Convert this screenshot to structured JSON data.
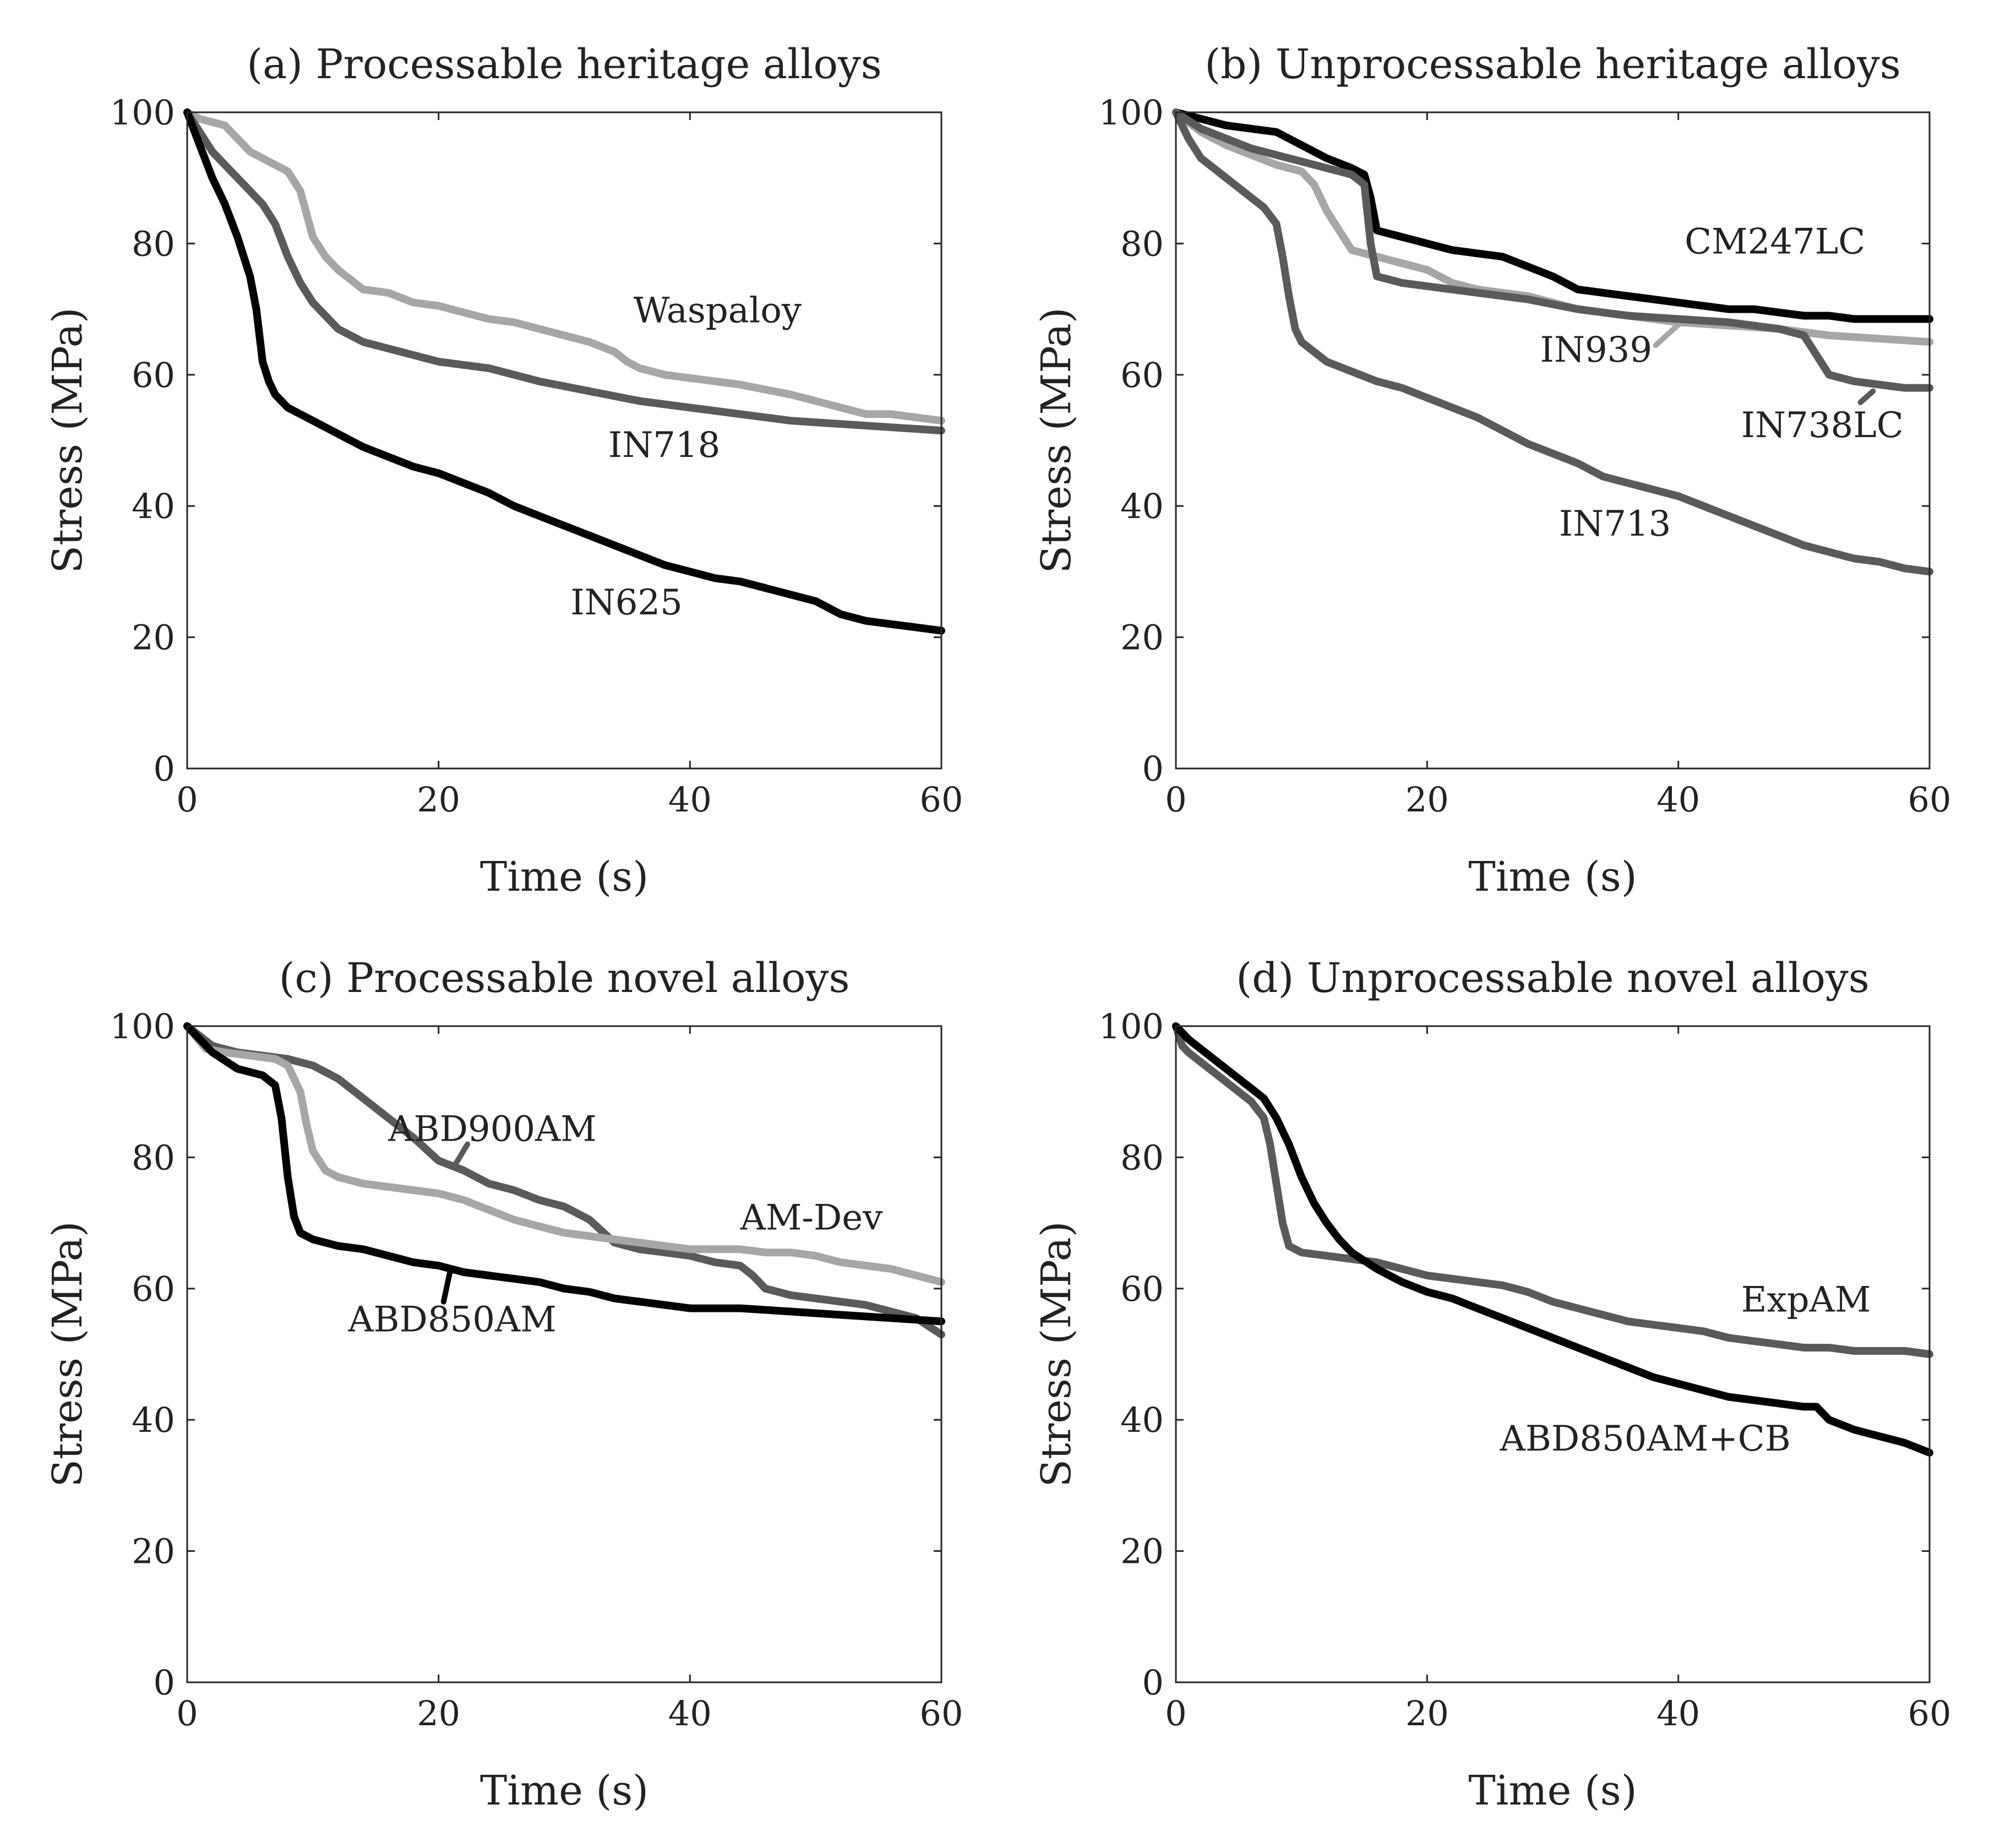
{
  "figure": {
    "colors": {
      "black": "#000000",
      "dark_gray": "#5a5a5a",
      "light_gray": "#a6a6a6",
      "axis": "#262626",
      "text": "#222222"
    }
  },
  "chart_data": [
    {
      "type": "line",
      "title": "(a) Processable heritage alloys",
      "xlabel": "Time (s)",
      "ylabel": "Stress (MPa)",
      "xlim": [
        0,
        60
      ],
      "ylim": [
        0,
        100
      ],
      "xticks": [
        0,
        20,
        40,
        60
      ],
      "yticks": [
        0,
        20,
        40,
        60,
        80,
        100
      ],
      "grid": false,
      "series": [
        {
          "name": "Waspaloy",
          "color": "light_gray",
          "label_anchor": [
            35.5,
            68
          ],
          "leader": null,
          "x": [
            0,
            1,
            2,
            3,
            4,
            5,
            6,
            7,
            8,
            9,
            10,
            11,
            12,
            14,
            16,
            18,
            20,
            22,
            24,
            26,
            28,
            30,
            32,
            34,
            35,
            36,
            38,
            40,
            44,
            48,
            50,
            52,
            54,
            56,
            58,
            60
          ],
          "y": [
            100,
            99,
            98.5,
            98,
            96,
            94,
            93,
            92,
            91,
            88,
            81,
            78,
            76,
            73,
            72.5,
            71,
            70.5,
            69.5,
            68.5,
            68,
            67,
            66,
            65,
            63.5,
            62,
            61,
            60,
            59.5,
            58.5,
            57,
            56,
            55,
            54,
            54,
            53.5,
            53
          ]
        },
        {
          "name": "IN718",
          "color": "dark_gray",
          "label_anchor": [
            33.5,
            47.5
          ],
          "leader": null,
          "x": [
            0,
            1,
            2,
            3,
            4,
            5,
            6,
            7,
            8,
            9,
            10,
            11,
            12,
            14,
            16,
            18,
            20,
            24,
            28,
            32,
            36,
            40,
            44,
            48,
            52,
            56,
            60
          ],
          "y": [
            100,
            97,
            94,
            92,
            90,
            88,
            86,
            83,
            78,
            74,
            71,
            69,
            67,
            65,
            64,
            63,
            62,
            61,
            59,
            57.5,
            56,
            55,
            54,
            53,
            52.5,
            52,
            51.5
          ]
        },
        {
          "name": "IN625",
          "color": "black",
          "label_anchor": [
            30.5,
            23.5
          ],
          "leader": null,
          "x": [
            0,
            1,
            2,
            3,
            4,
            5,
            5.5,
            6,
            6.5,
            7,
            8,
            10,
            12,
            14,
            16,
            18,
            20,
            22,
            24,
            26,
            28,
            30,
            32,
            34,
            36,
            38,
            40,
            42,
            44,
            46,
            48,
            50,
            52,
            54,
            56,
            58,
            60
          ],
          "y": [
            100,
            95,
            90,
            86,
            81,
            75,
            70,
            62,
            59,
            57,
            55,
            53,
            51,
            49,
            47.5,
            46,
            45,
            43.5,
            42,
            40,
            38.5,
            37,
            35.5,
            34,
            32.5,
            31,
            30,
            29,
            28.5,
            27.5,
            26.5,
            25.5,
            23.5,
            22.5,
            22,
            21.5,
            21
          ]
        }
      ]
    },
    {
      "type": "line",
      "title": "(b) Unprocessable heritage alloys",
      "xlabel": "Time (s)",
      "ylabel": "Stress (MPa)",
      "xlim": [
        0,
        60
      ],
      "ylim": [
        0,
        100
      ],
      "xticks": [
        0,
        20,
        40,
        60
      ],
      "yticks": [
        0,
        20,
        40,
        60,
        80,
        100
      ],
      "grid": false,
      "series": [
        {
          "name": "CM247LC",
          "color": "black",
          "label_anchor": [
            40.5,
            78.5
          ],
          "leader": null,
          "x": [
            0,
            2,
            4,
            6,
            8,
            10,
            12,
            14,
            15,
            15.5,
            16,
            18,
            20,
            22,
            24,
            26,
            28,
            30,
            32,
            34,
            36,
            38,
            40,
            42,
            44,
            46,
            48,
            50,
            52,
            54,
            56,
            58,
            60
          ],
          "y": [
            100,
            99,
            98,
            97.5,
            97,
            95,
            93,
            91.5,
            90.5,
            87,
            82,
            81,
            80,
            79,
            78.5,
            78,
            76.5,
            75,
            73,
            72.5,
            72,
            71.5,
            71,
            70.5,
            70,
            70,
            69.5,
            69,
            69,
            68.5,
            68.5,
            68.5,
            68.5
          ]
        },
        {
          "name": "IN939",
          "color": "light_gray",
          "label_anchor": [
            29,
            62
          ],
          "leader": [
            [
              38.2,
              64.5
            ],
            [
              40.5,
              68.5
            ]
          ],
          "x": [
            0,
            2,
            4,
            6,
            8,
            10,
            11,
            12,
            13,
            14,
            16,
            18,
            20,
            22,
            24,
            26,
            28,
            30,
            32,
            34,
            36,
            38,
            40,
            44,
            48,
            52,
            56,
            60
          ],
          "y": [
            100,
            97,
            95,
            93.5,
            92,
            91,
            89,
            85,
            82,
            79,
            78,
            77,
            76,
            74,
            73,
            72.5,
            72,
            71,
            70,
            69.5,
            69,
            68.5,
            68,
            67.5,
            67,
            66,
            65.5,
            65
          ]
        },
        {
          "name": "IN738LC",
          "color": "dark_gray",
          "label_anchor": [
            45,
            50.5
          ],
          "leader": [
            [
              54.5,
              55.8
            ],
            [
              55.5,
              57.5
            ]
          ],
          "x": [
            0,
            2,
            4,
            6,
            8,
            10,
            12,
            14,
            15,
            15.5,
            16,
            18,
            20,
            24,
            28,
            32,
            36,
            40,
            44,
            48,
            50,
            51,
            52,
            54,
            56,
            58,
            60
          ],
          "y": [
            100,
            97.5,
            96,
            94.5,
            93.5,
            92.5,
            91.5,
            90.5,
            89,
            80,
            75,
            74,
            73.5,
            72.5,
            71.5,
            70,
            69,
            68.5,
            68,
            67,
            66,
            63,
            60,
            59,
            58.5,
            58,
            58
          ]
        },
        {
          "name": "IN713",
          "color": "dark_gray",
          "label_anchor": [
            30.5,
            35.5
          ],
          "leader": null,
          "x": [
            0,
            1,
            2,
            3,
            4,
            5,
            6,
            7,
            8,
            8.5,
            9,
            9.5,
            10,
            11,
            12,
            14,
            16,
            18,
            20,
            22,
            24,
            26,
            28,
            30,
            32,
            34,
            36,
            38,
            40,
            42,
            44,
            46,
            48,
            50,
            52,
            54,
            56,
            58,
            60
          ],
          "y": [
            100,
            96,
            93,
            91.5,
            90,
            88.5,
            87,
            85.5,
            83,
            78,
            72,
            67,
            65,
            63.5,
            62,
            60.5,
            59,
            58,
            56.5,
            55,
            53.5,
            51.5,
            49.5,
            48,
            46.5,
            44.5,
            43.5,
            42.5,
            41.5,
            40,
            38.5,
            37,
            35.5,
            34,
            33,
            32,
            31.5,
            30.5,
            30
          ]
        }
      ]
    },
    {
      "type": "line",
      "title": "(c) Processable novel alloys",
      "xlabel": "Time (s)",
      "ylabel": "Stress (MPa)",
      "xlim": [
        0,
        60
      ],
      "ylim": [
        0,
        100
      ],
      "xticks": [
        0,
        20,
        40,
        60
      ],
      "yticks": [
        0,
        20,
        40,
        60,
        80,
        100
      ],
      "grid": false,
      "series": [
        {
          "name": "ABD900AM",
          "color": "dark_gray",
          "label_anchor": [
            16,
            82.5
          ],
          "leader": [
            [
              21.2,
              78.5
            ],
            [
              22.3,
              82
            ]
          ],
          "x": [
            0,
            2,
            4,
            6,
            8,
            10,
            12,
            14,
            16,
            18,
            20,
            22,
            24,
            26,
            28,
            30,
            32,
            34,
            36,
            38,
            40,
            42,
            44,
            45,
            46,
            48,
            50,
            52,
            54,
            56,
            58,
            60
          ],
          "y": [
            100,
            97,
            96,
            95.5,
            95,
            94,
            92,
            89,
            86,
            83,
            79.5,
            78,
            76,
            75,
            73.5,
            72.5,
            70.5,
            67,
            66,
            65.5,
            65,
            64,
            63.5,
            62,
            60,
            59,
            58.5,
            58,
            57.5,
            56.5,
            55.5,
            53
          ]
        },
        {
          "name": "AM-Dev",
          "color": "light_gray",
          "label_anchor": [
            44,
            69
          ],
          "leader": null,
          "x": [
            0,
            1.5,
            3,
            5,
            7,
            8,
            9,
            9.5,
            10,
            11,
            12,
            14,
            16,
            18,
            20,
            22,
            24,
            26,
            28,
            30,
            32,
            34,
            36,
            38,
            40,
            42,
            44,
            46,
            48,
            50,
            52,
            54,
            56,
            58,
            60
          ],
          "y": [
            100,
            96.5,
            96,
            95.5,
            95,
            94,
            90,
            85,
            81,
            78,
            77,
            76,
            75.5,
            75,
            74.5,
            73.5,
            72,
            70.5,
            69.5,
            68.5,
            68,
            67.5,
            67,
            66.5,
            66,
            66,
            66,
            65.5,
            65.5,
            65,
            64,
            63.5,
            63,
            62,
            61
          ]
        },
        {
          "name": "ABD850AM",
          "color": "black",
          "label_anchor": [
            12.8,
            53.5
          ],
          "leader": [
            [
              20.4,
              58
            ],
            [
              20.9,
              62.5
            ]
          ],
          "x": [
            0,
            2,
            4,
            6,
            7,
            7.5,
            8,
            8.5,
            9,
            10,
            12,
            14,
            16,
            18,
            20,
            22,
            24,
            26,
            28,
            30,
            32,
            34,
            36,
            38,
            40,
            44,
            48,
            52,
            56,
            60
          ],
          "y": [
            100,
            96,
            93.5,
            92.5,
            91,
            86,
            77,
            71,
            68.5,
            67.5,
            66.5,
            66,
            65,
            64,
            63.5,
            62.5,
            62,
            61.5,
            61,
            60,
            59.5,
            58.5,
            58,
            57.5,
            57,
            57,
            56.5,
            56,
            55.5,
            55
          ]
        }
      ]
    },
    {
      "type": "line",
      "title": "(d) Unprocessable novel alloys",
      "xlabel": "Time (s)",
      "ylabel": "Stress (MPa)",
      "xlim": [
        0,
        60
      ],
      "ylim": [
        0,
        100
      ],
      "xticks": [
        0,
        20,
        40,
        60
      ],
      "yticks": [
        0,
        20,
        40,
        60,
        80,
        100
      ],
      "grid": false,
      "series": [
        {
          "name": "ExpAM",
          "color": "dark_gray",
          "label_anchor": [
            45,
            56.5
          ],
          "leader": null,
          "x": [
            0,
            0.5,
            1,
            2,
            3,
            4,
            5,
            6,
            7,
            7.5,
            8,
            8.5,
            9,
            10,
            12,
            14,
            16,
            18,
            20,
            22,
            24,
            26,
            28,
            30,
            32,
            34,
            36,
            38,
            40,
            42,
            44,
            46,
            48,
            50,
            52,
            54,
            56,
            58,
            60
          ],
          "y": [
            100,
            97,
            96,
            94.5,
            93,
            91.5,
            90,
            88.5,
            86,
            82,
            76,
            70,
            66.5,
            65.5,
            65,
            64.5,
            64,
            63,
            62,
            61.5,
            61,
            60.5,
            59.5,
            58,
            57,
            56,
            55,
            54.5,
            54,
            53.5,
            52.5,
            52,
            51.5,
            51,
            51,
            50.5,
            50.5,
            50.5,
            50
          ]
        },
        {
          "name": "ABD850AM+CB",
          "color": "black",
          "label_anchor": [
            25.8,
            35.3
          ],
          "leader": null,
          "x": [
            0,
            1,
            2,
            3,
            4,
            5,
            6,
            7,
            8,
            9,
            10,
            11,
            12,
            13,
            14,
            16,
            18,
            20,
            22,
            24,
            26,
            28,
            30,
            32,
            34,
            36,
            38,
            40,
            42,
            44,
            46,
            48,
            50,
            51,
            52,
            54,
            56,
            58,
            60
          ],
          "y": [
            100,
            98,
            96.5,
            95,
            93.5,
            92,
            90.5,
            89,
            86,
            82,
            77,
            73,
            70,
            67.5,
            65.5,
            63,
            61,
            59.5,
            58.5,
            57,
            55.5,
            54,
            52.5,
            51,
            49.5,
            48,
            46.5,
            45.5,
            44.5,
            43.5,
            43,
            42.5,
            42,
            42,
            40,
            38.5,
            37.5,
            36.5,
            35
          ]
        }
      ]
    }
  ]
}
